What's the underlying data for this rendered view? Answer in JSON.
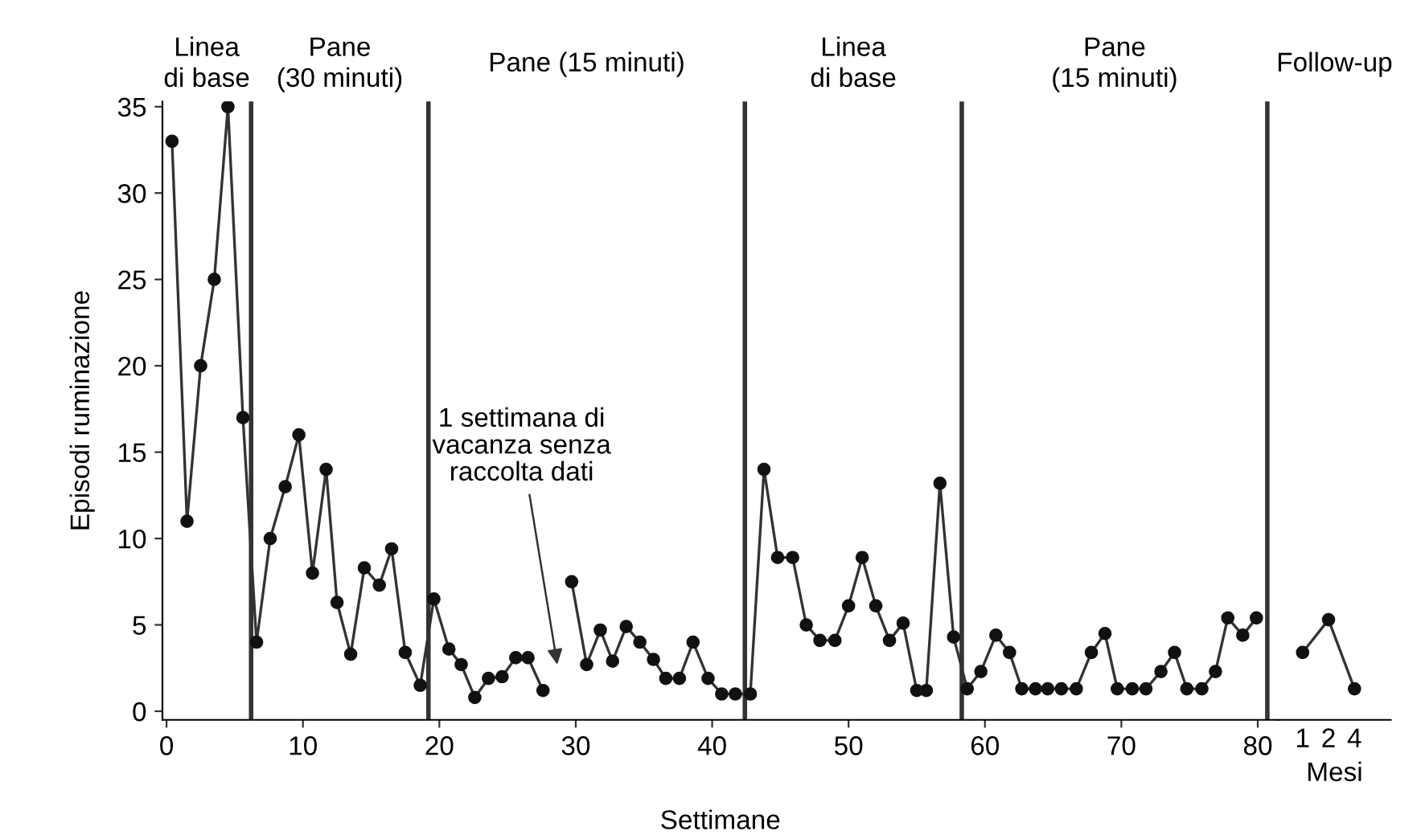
{
  "chart_data": [
    {
      "type": "line",
      "xlabel": "Settimane",
      "ylabel": "Episodi ruminazione",
      "series": [
        {
          "color": "#333333",
          "x": [
            0.4,
            1.5,
            2.5,
            3.5,
            4.5,
            5.6,
            6.6,
            7.6,
            8.7,
            9.7,
            10.7,
            11.7,
            12.5,
            13.5,
            14.5,
            15.6,
            16.5,
            17.5,
            18.6,
            19.6,
            20.7,
            21.6,
            22.6,
            23.6,
            24.6,
            25.6,
            26.5,
            27.6,
            28.6,
            29.7,
            30.8,
            31.8,
            32.7,
            33.7,
            34.7,
            35.7,
            36.6,
            37.6,
            38.6,
            39.7,
            40.7,
            41.7,
            42.8,
            43.8,
            44.8,
            45.9,
            46.9,
            47.9,
            49.0,
            50.0,
            51.0,
            52.0,
            53.0,
            54.0,
            55.0,
            55.7,
            56.7,
            57.7,
            58.7,
            59.7,
            60.8,
            61.8,
            62.7,
            63.7,
            64.6,
            65.6,
            66.7,
            67.8,
            68.8,
            69.7,
            70.8,
            71.8,
            72.9,
            73.9,
            74.8,
            75.9,
            76.9,
            77.8,
            78.9,
            79.9
          ],
          "values": [
            33,
            11,
            20,
            25,
            35,
            17,
            4,
            10,
            13,
            16,
            8,
            14,
            6.3,
            3.3,
            8.3,
            7.3,
            9.4,
            3.4,
            1.5,
            6.5,
            3.6,
            2.7,
            0.8,
            1.9,
            2,
            3.1,
            3.1,
            1.2,
            null,
            7.5,
            2.7,
            4.7,
            2.9,
            4.9,
            4,
            3,
            1.9,
            1.9,
            4,
            1.9,
            1,
            1,
            1,
            14,
            8.9,
            8.9,
            5,
            4.1,
            4.1,
            6.1,
            8.9,
            6.1,
            4.1,
            5.1,
            1.2,
            1.2,
            13.2,
            4.3,
            1.3,
            2.3,
            4.4,
            3.4,
            1.3,
            1.3,
            1.3,
            1.3,
            1.3,
            3.4,
            4.5,
            1.3,
            1.3,
            1.3,
            2.3,
            3.4,
            1.3,
            1.3,
            2.3,
            5.4,
            4.4,
            5.4
          ]
        }
      ],
      "xlim": [
        -0.3,
        81.5
      ],
      "ylim": [
        -0.5,
        35.3
      ],
      "xticks": [
        0,
        10,
        20,
        30,
        40,
        50,
        60,
        70,
        80
      ],
      "yticks": [
        0,
        5,
        10,
        15,
        20,
        25,
        30,
        35
      ],
      "marker": "circle",
      "line_style": "solid",
      "ref_lines": [
        {
          "axis": "x",
          "value": 6.2,
          "color": "#333333"
        },
        {
          "axis": "x",
          "value": 19.2,
          "color": "#333333"
        },
        {
          "axis": "x",
          "value": 42.4,
          "color": "#333333"
        },
        {
          "axis": "x",
          "value": 58.3,
          "color": "#333333"
        },
        {
          "axis": "x",
          "value": 80.7,
          "color": "#333333"
        }
      ],
      "annotations": [
        "Linea\ndi base",
        "Pane\n(30 minuti)",
        "Pane (15 minuti)",
        "Linea\ndi base",
        "Pane\n(15 minuti)",
        "1 settimana di\nvacanza senza\nraccolta dati"
      ]
    },
    {
      "type": "line",
      "title": "Follow-up",
      "xlabel": "Mesi",
      "categories": [
        "1",
        "2",
        "4"
      ],
      "series": [
        {
          "color": "#333333",
          "values": [
            3.4,
            5.3,
            1.3
          ]
        }
      ],
      "ylim": [
        -0.5,
        35.3
      ],
      "tick_labels": "x",
      "marker": "circle",
      "line_style": "solid"
    }
  ]
}
